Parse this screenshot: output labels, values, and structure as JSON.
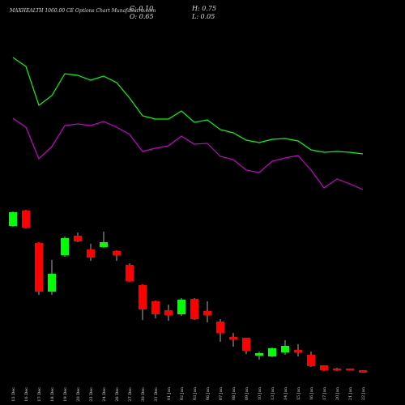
{
  "chart_data": [
    {
      "type": "line",
      "categories": [
        "13 Dec",
        "16 Dec",
        "17 Dec",
        "18 Dec",
        "19 Dec",
        "20 Dec",
        "23 Dec",
        "24 Dec",
        "26 Dec",
        "27 Dec",
        "30 Dec",
        "31 Dec",
        "01 Jan",
        "02 Jan",
        "03 Jan",
        "06 Jan",
        "07 Jan",
        "08 Jan",
        "09 Jan",
        "10 Jan",
        "13 Jan",
        "14 Jan",
        "15 Jan",
        "16 Jan",
        "17 Jan",
        "20 Jan",
        "21 Jan",
        "22 Jan"
      ],
      "ylim": [
        0,
        25
      ],
      "series": [
        {
          "color": "#00ff00",
          "values": [
            17.9,
            16.8,
            12.0,
            13.2,
            15.9,
            15.7,
            15.1,
            15.6,
            14.8,
            12.9,
            10.7,
            10.3,
            10.3,
            11.3,
            9.9,
            10.2,
            9.0,
            8.6,
            7.7,
            7.4,
            7.8,
            7.9,
            7.6,
            6.5,
            6.2,
            6.3,
            6.2,
            6.0
          ]
        },
        {
          "color": "#cc00cc",
          "values": [
            10.4,
            9.3,
            5.4,
            6.9,
            9.5,
            9.7,
            9.5,
            10.0,
            9.3,
            8.4,
            6.3,
            6.7,
            7.0,
            8.2,
            7.2,
            7.3,
            5.7,
            5.3,
            4.0,
            3.7,
            5.1,
            5.5,
            5.8,
            4.0,
            1.8,
            2.9,
            2.3,
            1.6
          ]
        }
      ]
    },
    {
      "type": "candlestick",
      "title": "MAXHEALTH 1060.00 CE Options Chart MunafaSutra.com",
      "annotations": [
        "C: 0.10",
        "O: 0.65",
        "H: 0.75",
        "L: 0.05"
      ],
      "categories": [
        "13 Dec",
        "16 Dec",
        "17 Dec",
        "18 Dec",
        "19 Dec",
        "20 Dec",
        "23 Dec",
        "24 Dec",
        "26 Dec",
        "27 Dec",
        "30 Dec",
        "31 Dec",
        "01 Jan",
        "02 Jan",
        "03 Jan",
        "06 Jan",
        "07 Jan",
        "08 Jan",
        "09 Jan",
        "10 Jan",
        "13 Jan",
        "14 Jan",
        "15 Jan",
        "16 Jan",
        "17 Jan",
        "20 Jan",
        "21 Jan",
        "22 Jan"
      ],
      "ylim": [
        0,
        25
      ],
      "up_color": "#00ff00",
      "down_color": "#ff0000",
      "open": [
        19.1,
        21.0,
        17.0,
        11.0,
        15.5,
        17.9,
        16.2,
        16.5,
        16.0,
        14.3,
        11.8,
        9.8,
        8.7,
        8.2,
        10.1,
        8.6,
        7.3,
        5.4,
        5.3,
        3.1,
        3.0,
        3.5,
        3.8,
        3.2,
        1.9,
        1.5,
        1.5,
        1.3
      ],
      "high": [
        20.9,
        21.1,
        17.1,
        14.9,
        17.8,
        18.3,
        16.9,
        18.4,
        16.1,
        14.5,
        11.9,
        9.9,
        9.4,
        10.2,
        10.2,
        9.8,
        7.6,
        5.9,
        5.3,
        3.6,
        4.1,
        5.0,
        4.5,
        3.6,
        1.9,
        1.6,
        1.5,
        1.3
      ],
      "low": [
        19.0,
        18.8,
        10.6,
        10.6,
        15.3,
        17.1,
        14.8,
        16.4,
        14.8,
        12.2,
        7.5,
        7.7,
        7.4,
        8.0,
        7.5,
        7.2,
        4.8,
        4.2,
        3.3,
        2.6,
        2.9,
        3.2,
        3.0,
        1.7,
        1.2,
        1.2,
        1.3,
        1.0
      ],
      "close": [
        20.8,
        18.9,
        11.0,
        13.2,
        17.6,
        17.2,
        15.2,
        17.1,
        15.5,
        12.3,
        8.8,
        8.2,
        8.1,
        10.0,
        7.6,
        8.1,
        5.9,
        5.1,
        3.7,
        3.4,
        4.0,
        4.3,
        3.5,
        1.8,
        1.3,
        1.3,
        1.3,
        1.0
      ]
    }
  ]
}
